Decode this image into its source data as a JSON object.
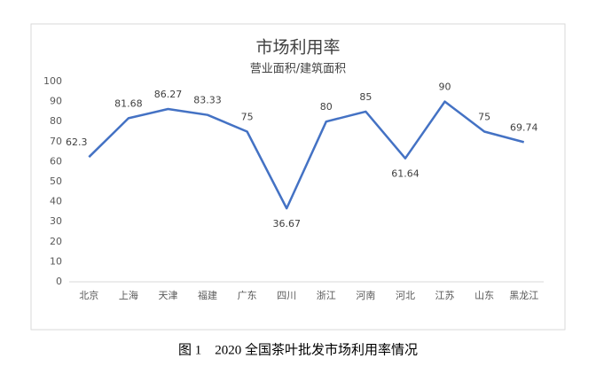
{
  "chart_data": {
    "type": "line",
    "title": "市场利用率",
    "subtitle": "营业面积/建筑面积",
    "categories": [
      "北京",
      "上海",
      "天津",
      "福建",
      "广东",
      "四川",
      "浙江",
      "河南",
      "河北",
      "江苏",
      "山东",
      "黑龙江"
    ],
    "values": [
      62.3,
      81.68,
      86.27,
      83.33,
      75,
      36.67,
      80,
      85,
      61.64,
      90,
      75,
      69.74
    ],
    "color": "#4472c4",
    "ylim": [
      0,
      100
    ],
    "yticks": [
      0,
      10,
      20,
      30,
      40,
      50,
      60,
      70,
      80,
      90,
      100
    ],
    "grid": false
  },
  "caption": "图 1　2020 全国茶叶批发市场利用率情况"
}
